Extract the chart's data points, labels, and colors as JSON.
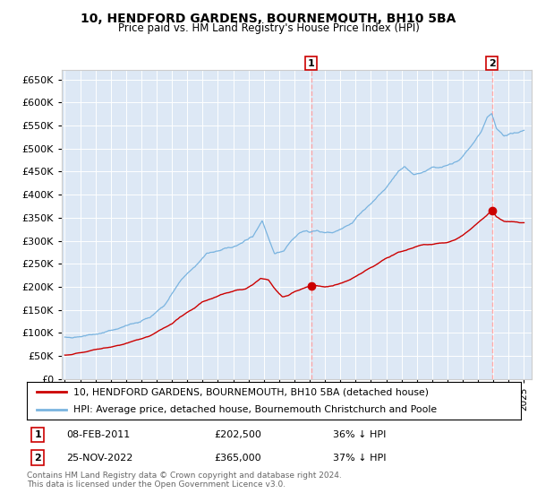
{
  "title": "10, HENDFORD GARDENS, BOURNEMOUTH, BH10 5BA",
  "subtitle": "Price paid vs. HM Land Registry's House Price Index (HPI)",
  "bg_color": "#dde8f5",
  "hpi_color": "#7ab4e0",
  "price_color": "#cc0000",
  "marker_color": "#cc0000",
  "vline_color": "#ffaaaa",
  "ylim": [
    0,
    670000
  ],
  "yticks": [
    0,
    50000,
    100000,
    150000,
    200000,
    250000,
    300000,
    350000,
    400000,
    450000,
    500000,
    550000,
    600000,
    650000
  ],
  "xlim_start": 1994.8,
  "xlim_end": 2025.5,
  "sale1_date": 2011.1,
  "sale1_price": 202500,
  "sale2_date": 2022.9,
  "sale2_price": 365000,
  "sale1_date_str": "08-FEB-2011",
  "sale1_price_str": "£202,500",
  "sale1_pct": "36% ↓ HPI",
  "sale2_date_str": "25-NOV-2022",
  "sale2_price_str": "£365,000",
  "sale2_pct": "37% ↓ HPI",
  "legend_line1": "10, HENDFORD GARDENS, BOURNEMOUTH, BH10 5BA (detached house)",
  "legend_line2": "HPI: Average price, detached house, Bournemouth Christchurch and Poole",
  "footer1": "Contains HM Land Registry data © Crown copyright and database right 2024.",
  "footer2": "This data is licensed under the Open Government Licence v3.0."
}
